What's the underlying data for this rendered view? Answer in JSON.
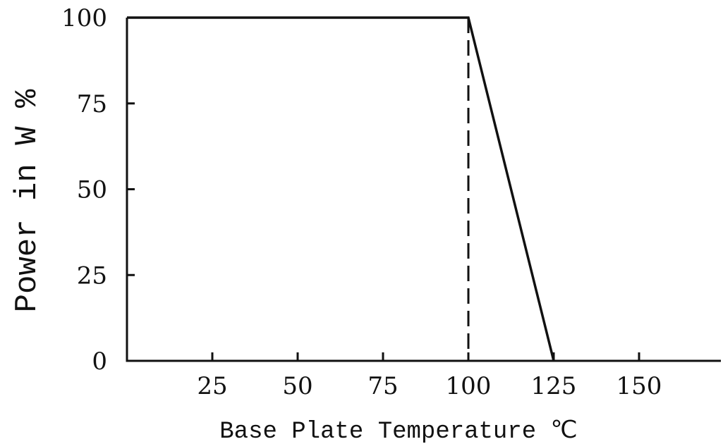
{
  "chart_data": {
    "type": "line",
    "title": "",
    "xlabel": "Base Plate Temperature ℃",
    "ylabel": "Power in W %",
    "xlim": [
      0,
      170
    ],
    "ylim": [
      0,
      100
    ],
    "x_ticks": [
      25,
      50,
      75,
      100,
      125,
      150
    ],
    "x_tick_labels": [
      "25",
      "50",
      "75",
      "100",
      "125",
      "150"
    ],
    "y_ticks": [
      0,
      25,
      50,
      75,
      100
    ],
    "y_tick_labels": [
      "0",
      "25",
      "50",
      "75",
      "100"
    ],
    "grid": false,
    "legend": "none",
    "series": [
      {
        "x": [
          0,
          100,
          125
        ],
        "y": [
          100,
          100,
          0
        ],
        "style": "solid",
        "color": "#111111"
      }
    ],
    "reference_lines": [
      {
        "orientation": "vertical",
        "x": 100,
        "y_range": [
          0,
          100
        ],
        "style": "dashed",
        "color": "#111111"
      }
    ]
  }
}
